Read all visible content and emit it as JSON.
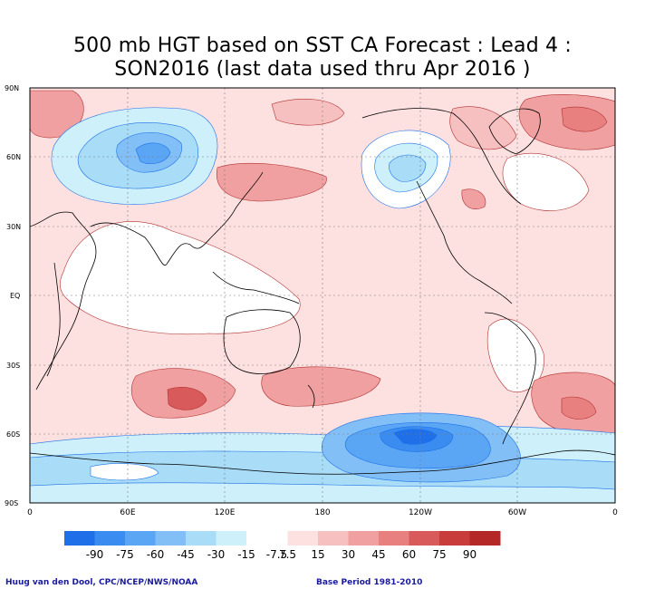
{
  "title": {
    "line1": "500 mb HGT based on SST CA Forecast : Lead 4 :",
    "line2": "SON2016 (last data used thru Apr 2016 )"
  },
  "map": {
    "lat_labels": [
      "90N",
      "60N",
      "30N",
      "EQ",
      "30S",
      "60S",
      "90S"
    ],
    "lon_labels": [
      "0",
      "60E",
      "120E",
      "180",
      "120W",
      "60W",
      "0"
    ]
  },
  "colorbar": {
    "labels": [
      "-90",
      "-75",
      "-60",
      "-45",
      "-30",
      "-15",
      "-7.5",
      "7.5",
      "15",
      "30",
      "45",
      "60",
      "75",
      "90"
    ],
    "colors": [
      "#1e6fe8",
      "#3a8cf0",
      "#5aa6f5",
      "#82bff7",
      "#a8dcf7",
      "#cdf0fa",
      "#ffffff",
      "#fde0e0",
      "#f7c0c0",
      "#f0a0a0",
      "#e88080",
      "#d95a5a",
      "#c83c3c",
      "#b42828"
    ]
  },
  "footer": {
    "left": "Huug van den Dool, CPC/NCEP/NWS/NOAA",
    "right": "Base Period 1981-2010"
  }
}
